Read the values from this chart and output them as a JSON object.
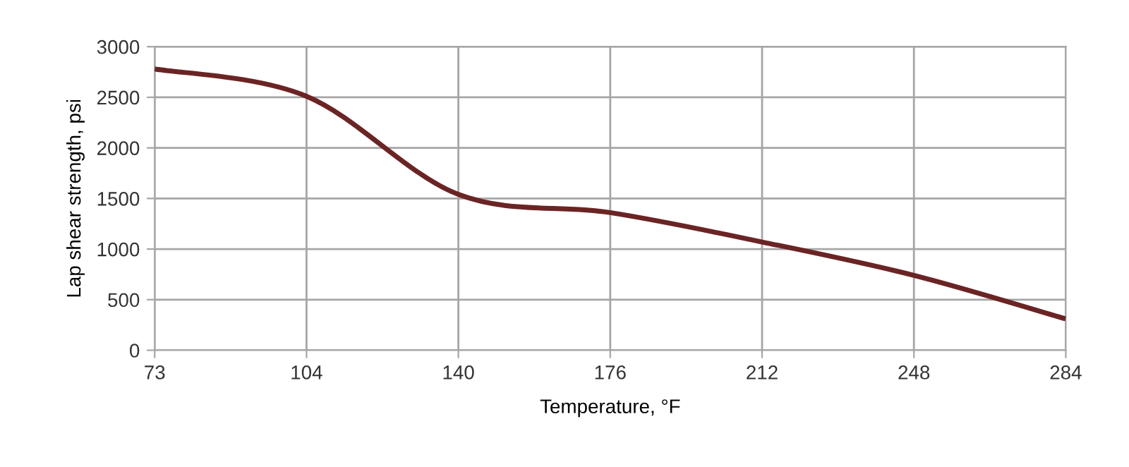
{
  "chart_data": {
    "type": "line",
    "xlabel": "Temperature, °F",
    "ylabel": "Lap shear strength, psi",
    "categories": [
      "73",
      "104",
      "140",
      "176",
      "212",
      "248",
      "284"
    ],
    "series": [
      {
        "color": "#6b2424",
        "values": [
          2780,
          2510,
          1540,
          1360,
          1070,
          740,
          310
        ]
      }
    ],
    "ylim": [
      0,
      3000
    ],
    "yticks": [
      0,
      500,
      1000,
      1500,
      2000,
      2500,
      3000
    ],
    "grid": true,
    "marker": "none",
    "line_style": "solid"
  }
}
